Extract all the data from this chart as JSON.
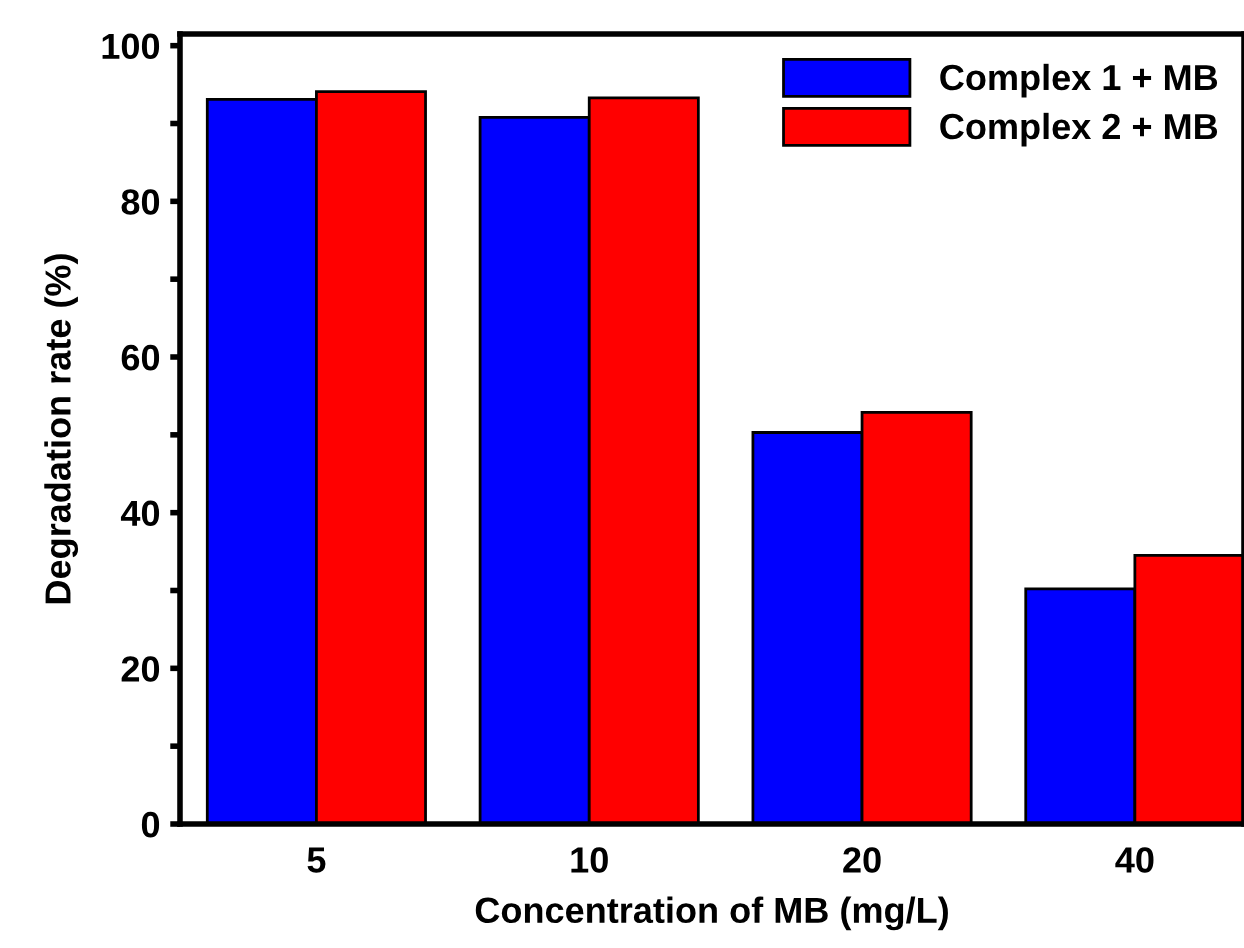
{
  "chart_data": {
    "type": "bar",
    "xlabel": "Concentration of MB (mg/L)",
    "ylabel": "Degradation rate (%)",
    "categories": [
      "5",
      "10",
      "20",
      "40"
    ],
    "series": [
      {
        "name": "Complex 1 + MB",
        "color": "#0000ff",
        "values": [
          93.1,
          90.8,
          50.3,
          30.2
        ]
      },
      {
        "name": "Complex 2 + MB",
        "color": "#ff0000",
        "values": [
          94.1,
          93.3,
          52.9,
          34.5
        ]
      }
    ],
    "ylim": [
      0,
      101.5
    ],
    "yticks": [
      0,
      {
        "value": 10,
        "label": null
      },
      20,
      {
        "value": 30,
        "label": null
      },
      40,
      {
        "value": 50,
        "label": null
      },
      60,
      {
        "value": 70,
        "label": null
      },
      80,
      {
        "value": 90,
        "label": null
      },
      100
    ],
    "legend": "top right",
    "grid": false
  }
}
